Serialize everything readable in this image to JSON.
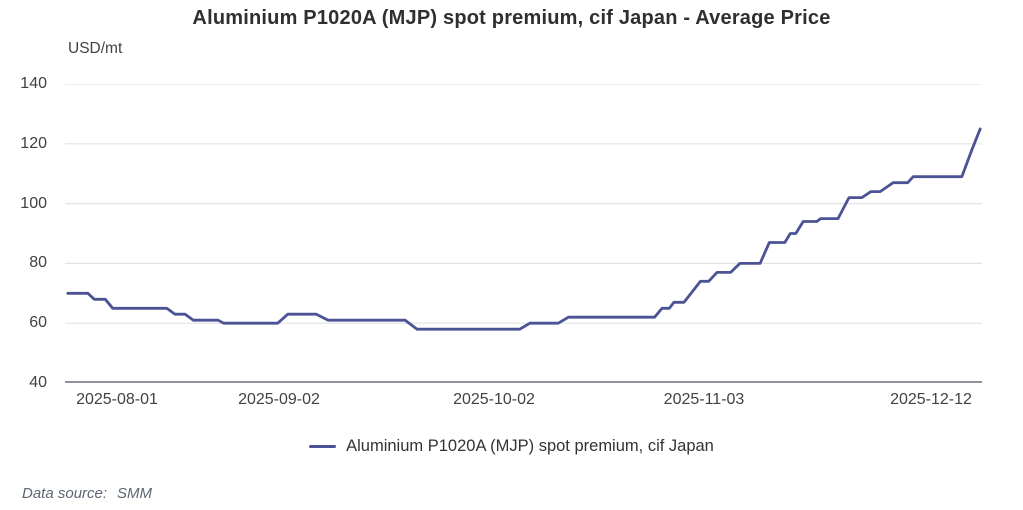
{
  "chart_data": {
    "type": "line",
    "title": "Aluminium P1020A (MJP) spot premium, cif Japan - Average Price",
    "unit_label": "USD/mt",
    "xlabel": "",
    "ylabel": "USD/mt",
    "ylim": [
      40,
      140
    ],
    "y_ticks": [
      140,
      120,
      100,
      80,
      60,
      40
    ],
    "x_ticks": [
      {
        "label": "2025-08-01",
        "pos": 0.057
      },
      {
        "label": "2025-09-02",
        "pos": 0.233
      },
      {
        "label": "2025-10-02",
        "pos": 0.468
      },
      {
        "label": "2025-11-03",
        "pos": 0.697
      },
      {
        "label": "2025-12-12",
        "pos": 0.944
      }
    ],
    "grid": "horizontal",
    "legend_position": "bottom-center",
    "colors": {
      "line": "#4b5394",
      "grid": "#e3e3e7",
      "axis": "#8e939c",
      "tick_text": "#3f4245",
      "title_text": "#2f2f2f",
      "source_text": "#5c6672"
    },
    "series": [
      {
        "name": "Aluminium P1020A (MJP) spot premium, cif Japan",
        "color": "#4b5394",
        "points": [
          [
            0.003,
            70
          ],
          [
            0.025,
            70
          ],
          [
            0.032,
            68
          ],
          [
            0.044,
            68
          ],
          [
            0.052,
            65
          ],
          [
            0.111,
            65
          ],
          [
            0.12,
            63
          ],
          [
            0.131,
            63
          ],
          [
            0.14,
            61
          ],
          [
            0.167,
            61
          ],
          [
            0.173,
            60
          ],
          [
            0.232,
            60
          ],
          [
            0.243,
            63
          ],
          [
            0.274,
            63
          ],
          [
            0.287,
            61
          ],
          [
            0.371,
            61
          ],
          [
            0.384,
            58
          ],
          [
            0.496,
            58
          ],
          [
            0.507,
            60
          ],
          [
            0.538,
            60
          ],
          [
            0.549,
            62
          ],
          [
            0.643,
            62
          ],
          [
            0.651,
            65
          ],
          [
            0.659,
            65
          ],
          [
            0.664,
            67
          ],
          [
            0.675,
            67
          ],
          [
            0.693,
            74
          ],
          [
            0.702,
            74
          ],
          [
            0.711,
            77
          ],
          [
            0.726,
            77
          ],
          [
            0.736,
            80
          ],
          [
            0.758,
            80
          ],
          [
            0.768,
            87
          ],
          [
            0.785,
            87
          ],
          [
            0.791,
            90
          ],
          [
            0.797,
            90
          ],
          [
            0.805,
            94
          ],
          [
            0.82,
            94
          ],
          [
            0.824,
            95
          ],
          [
            0.843,
            95
          ],
          [
            0.855,
            102
          ],
          [
            0.869,
            102
          ],
          [
            0.879,
            104
          ],
          [
            0.889,
            104
          ],
          [
            0.903,
            107
          ],
          [
            0.919,
            107
          ],
          [
            0.925,
            109
          ],
          [
            0.978,
            109
          ],
          [
            0.989,
            118
          ],
          [
            0.998,
            125
          ]
        ]
      }
    ],
    "source": {
      "label": "Data source:",
      "value": "SMM"
    }
  }
}
